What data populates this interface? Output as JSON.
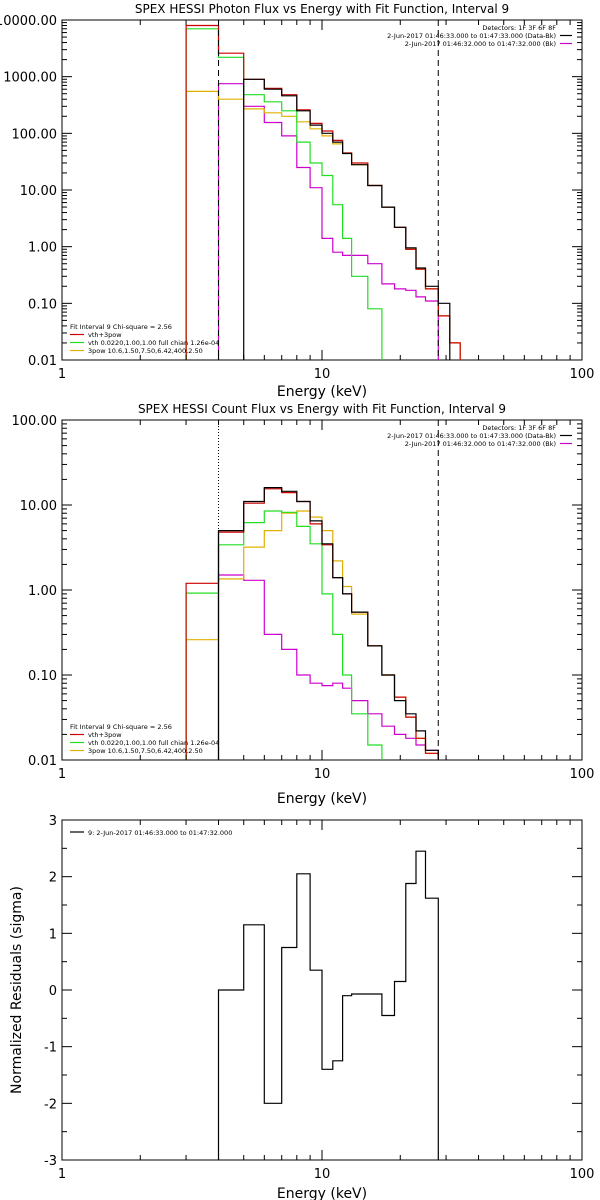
{
  "colors": {
    "total": "#000000",
    "model_sum": "#cc0000",
    "vth": "#22dd22",
    "pow": "#e0b000",
    "bk": "#cc00cc",
    "fit_range": "#000000"
  },
  "xticks": [
    "1",
    "10",
    "100"
  ],
  "chart_data": [
    {
      "type": "line",
      "title": "SPEX HESSI Photon Flux vs Energy with Fit Function, Interval 9",
      "xlabel": "Energy (keV)",
      "ylabel": "",
      "xscale": "log",
      "yscale": "log",
      "xlim": [
        1,
        100
      ],
      "ylim": [
        0.01,
        10000
      ],
      "yticks": [
        "0.01",
        "0.10",
        "1.00",
        "10.00",
        "100.00",
        "1000.00",
        "10000.00"
      ],
      "vlines": [
        4,
        28
      ],
      "legend_top": [
        {
          "text": "Detectors: 1F 3F 6F 8F",
          "color": "total"
        },
        {
          "text": "2-Jun-2017 01:46:33.000 to 01:47:33.000 (Data-Bk)",
          "color": "total"
        },
        {
          "text": "2-Jun-2017 01:46:32.000 to 01:47:32.000 (Bk)",
          "color": "bk"
        }
      ],
      "legend_bottom": [
        {
          "text": "Fit Interval 9   Chi-square = 2.56",
          "color": "total"
        },
        {
          "text": "vth+3pow",
          "color": "model_sum"
        },
        {
          "text": "vth 0.0220,1.00,1.00  full chian 1.26e-04",
          "color": "vth"
        },
        {
          "text": "3pow 10.6,1.50,7.50,6.42,400,2.50",
          "color": "pow"
        }
      ],
      "edges": [
        3,
        4,
        5,
        6,
        7,
        8,
        9,
        10,
        11,
        12,
        13,
        15,
        17,
        19,
        21,
        23,
        25,
        28,
        31,
        34
      ],
      "series": [
        {
          "key": "bk",
          "values": [
            null,
            750,
            300,
            155,
            90,
            25,
            11,
            1.4,
            0.8,
            0.7,
            0.7,
            0.5,
            0.22,
            0.18,
            0.17,
            0.13,
            0.11,
            null,
            null
          ]
        },
        {
          "key": "pow",
          "values": [
            550,
            400,
            270,
            230,
            200,
            160,
            120,
            90,
            65,
            45,
            28,
            12,
            5,
            2.2,
            0.9,
            0.4,
            0.18,
            0.06,
            0.02
          ]
        },
        {
          "key": "vth",
          "values": [
            7000,
            2200,
            480,
            360,
            250,
            70,
            30,
            18,
            5.5,
            1.4,
            0.3,
            0.08,
            null,
            null,
            null,
            null,
            null,
            null,
            null
          ]
        },
        {
          "key": "model_sum",
          "values": [
            8000,
            2600,
            900,
            620,
            480,
            260,
            150,
            110,
            75,
            45,
            30,
            12,
            5,
            2.2,
            0.9,
            0.4,
            0.18,
            0.06,
            0.02
          ]
        },
        {
          "key": "total",
          "values": [
            null,
            null,
            900,
            600,
            460,
            250,
            140,
            100,
            70,
            44,
            28,
            12,
            5,
            2.2,
            0.95,
            0.42,
            0.2,
            0.1,
            null
          ]
        }
      ]
    },
    {
      "type": "line",
      "title": "SPEX HESSI Count Flux vs Energy with Fit Function, Interval 9",
      "xlabel": "Energy (keV)",
      "ylabel": "",
      "xscale": "log",
      "yscale": "log",
      "xlim": [
        1,
        100
      ],
      "ylim": [
        0.01,
        100
      ],
      "yticks": [
        "0.01",
        "0.10",
        "1.00",
        "10.00",
        "100.00"
      ],
      "vlines": [
        4,
        28
      ],
      "vline_dotted": 4,
      "legend_top": [
        {
          "text": "Detectors: 1F 3F 6F 8F",
          "color": "total"
        },
        {
          "text": "2-Jun-2017 01:46:33.000 to 01:47:33.000 (Data-Bk)",
          "color": "total"
        },
        {
          "text": "2-Jun-2017 01:46:32.000 to 01:47:32.000 (Bk)",
          "color": "bk"
        }
      ],
      "legend_bottom": [
        {
          "text": "Fit Interval 9   Chi-square = 2.56",
          "color": "total"
        },
        {
          "text": "vth+3pow",
          "color": "model_sum"
        },
        {
          "text": "vth 0.0220,1.00,1.00  full chian 1.26e-04",
          "color": "vth"
        },
        {
          "text": "3pow 10.6,1.50,7.50,6.42,400,2.50",
          "color": "pow"
        }
      ],
      "edges": [
        3,
        4,
        5,
        6,
        7,
        8,
        9,
        10,
        11,
        12,
        13,
        15,
        17,
        19,
        21,
        23,
        25,
        28
      ],
      "series": [
        {
          "key": "bk",
          "values": [
            null,
            1.5,
            1.3,
            0.3,
            0.2,
            0.1,
            0.08,
            0.075,
            0.08,
            0.07,
            0.05,
            0.035,
            0.025,
            0.02,
            0.018,
            0.015,
            0.013
          ]
        },
        {
          "key": "pow",
          "values": [
            0.26,
            1.35,
            3.2,
            5,
            8,
            8.5,
            7.2,
            5,
            2.2,
            1.1,
            0.52,
            0.22,
            0.1,
            0.055,
            0.032,
            0.018,
            0.012
          ]
        },
        {
          "key": "vth",
          "values": [
            0.92,
            3.4,
            6.2,
            8.5,
            8.2,
            5.6,
            3.5,
            0.9,
            0.3,
            0.1,
            0.035,
            0.015,
            null,
            null,
            null,
            null,
            null
          ]
        },
        {
          "key": "model_sum",
          "values": [
            1.2,
            4.8,
            10.5,
            15.5,
            14,
            11,
            6,
            3.4,
            1.4,
            0.9,
            0.55,
            0.22,
            0.1,
            0.055,
            0.032,
            0.018,
            0.012
          ]
        },
        {
          "key": "total",
          "values": [
            null,
            5,
            11,
            16,
            14.5,
            11,
            6.5,
            3.5,
            1.4,
            0.9,
            0.55,
            0.22,
            0.1,
            0.05,
            0.035,
            0.022,
            0.013
          ]
        }
      ]
    },
    {
      "type": "line",
      "title": "",
      "xlabel": "Energy (keV)",
      "ylabel": "Normalized Residuals (sigma)",
      "xscale": "log",
      "yscale": "linear",
      "xlim": [
        1,
        100
      ],
      "ylim": [
        -3,
        3
      ],
      "yticks": [
        "-3",
        "-2",
        "-1",
        "0",
        "1",
        "2",
        "3"
      ],
      "legend_top": [
        {
          "text": "9:  2-Jun-2017 01:46:33.000 to 01:47:32.000",
          "color": "total"
        }
      ],
      "edges": [
        4,
        5,
        6,
        7,
        8,
        9,
        10,
        11,
        12,
        13,
        15,
        17,
        19,
        21,
        23,
        25,
        28
      ],
      "series": [
        {
          "key": "total",
          "values": [
            0,
            1.15,
            -2.0,
            0.75,
            2.05,
            0.35,
            -1.4,
            -1.25,
            -0.1,
            -0.07,
            -0.07,
            -0.45,
            0.15,
            1.88,
            2.45,
            1.62
          ]
        }
      ]
    }
  ]
}
